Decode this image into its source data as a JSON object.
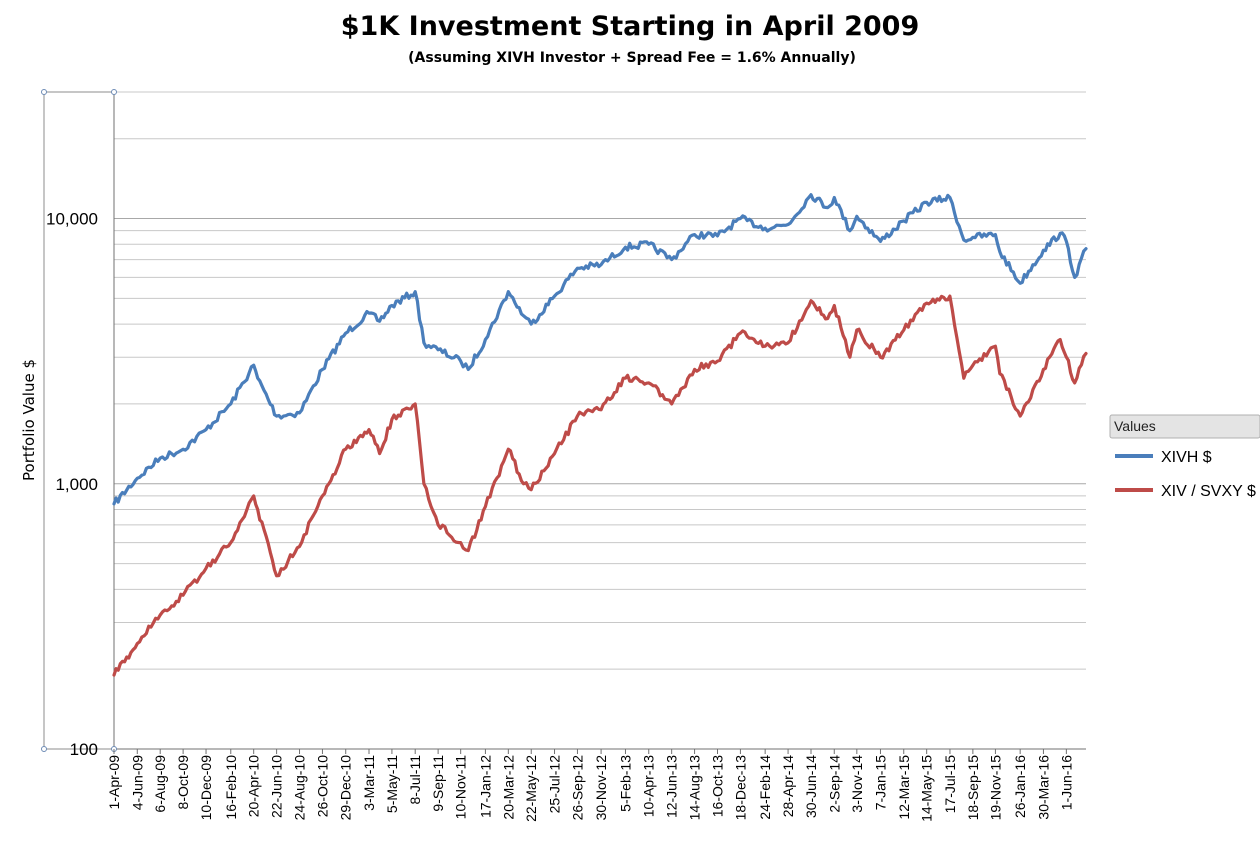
{
  "chart_data": {
    "type": "line",
    "title": "$1K Investment Starting in April 2009",
    "subtitle": "(Assuming XIVH Investor + Spread Fee = 1.6% Annually)",
    "ylabel": "Portfolio Value $",
    "xlabel": "",
    "y_scale": "log",
    "ylim": [
      100,
      30000
    ],
    "y_ticks": [
      "100",
      "1,000",
      "10,000"
    ],
    "grid": "horizontal",
    "legend_title": "Values",
    "legend_position": "right",
    "x_tick_labels": [
      "1-Apr-09",
      "4-Jun-09",
      "6-Aug-09",
      "8-Oct-09",
      "10-Dec-09",
      "16-Feb-10",
      "20-Apr-10",
      "22-Jun-10",
      "24-Aug-10",
      "26-Oct-10",
      "29-Dec-10",
      "3-Mar-11",
      "5-May-11",
      "8-Jul-11",
      "9-Sep-11",
      "10-Nov-11",
      "17-Jan-12",
      "20-Mar-12",
      "22-May-12",
      "25-Jul-12",
      "26-Sep-12",
      "30-Nov-12",
      "5-Feb-13",
      "10-Apr-13",
      "12-Jun-13",
      "14-Aug-13",
      "16-Oct-13",
      "18-Dec-13",
      "24-Feb-14",
      "28-Apr-14",
      "30-Jun-14",
      "2-Sep-14",
      "3-Nov-14",
      "7-Jan-15",
      "12-Mar-15",
      "14-May-15",
      "17-Jul-15",
      "18-Sep-15",
      "19-Nov-15",
      "26-Jan-16",
      "30-Mar-16",
      "1-Jun-16"
    ],
    "x_end": "Jul-16",
    "series": [
      {
        "name": "XIVH $",
        "color": "#4a7ebb",
        "points": [
          [
            "1-Apr-09",
            840
          ],
          [
            "4-Jun-09",
            1050
          ],
          [
            "6-Aug-09",
            1250
          ],
          [
            "8-Oct-09",
            1350
          ],
          [
            "10-Dec-09",
            1600
          ],
          [
            "16-Feb-10",
            2000
          ],
          [
            "20-Apr-10",
            2800
          ],
          [
            "1-May-10",
            2500
          ],
          [
            "22-Jun-10",
            1800
          ],
          [
            "24-Aug-10",
            1850
          ],
          [
            "26-Oct-10",
            2700
          ],
          [
            "29-Dec-10",
            3700
          ],
          [
            "3-Mar-11",
            4400
          ],
          [
            "1-Apr-11",
            4100
          ],
          [
            "5-May-11",
            4700
          ],
          [
            "8-Jul-11",
            5300
          ],
          [
            "1-Aug-11",
            3400
          ],
          [
            "9-Sep-11",
            3200
          ],
          [
            "10-Nov-11",
            2900
          ],
          [
            "1-Dec-11",
            2700
          ],
          [
            "17-Jan-12",
            3500
          ],
          [
            "20-Mar-12",
            5300
          ],
          [
            "1-May-12",
            4300
          ],
          [
            "22-May-12",
            4000
          ],
          [
            "25-Jul-12",
            5100
          ],
          [
            "26-Sep-12",
            6500
          ],
          [
            "30-Nov-12",
            6700
          ],
          [
            "5-Feb-13",
            7800
          ],
          [
            "10-Apr-13",
            8000
          ],
          [
            "12-Jun-13",
            7000
          ],
          [
            "14-Aug-13",
            8700
          ],
          [
            "16-Oct-13",
            8600
          ],
          [
            "18-Dec-13",
            10000
          ],
          [
            "24-Feb-14",
            9200
          ],
          [
            "28-Apr-14",
            9500
          ],
          [
            "30-Jun-14",
            12300
          ],
          [
            "15-Aug-14",
            11000
          ],
          [
            "2-Sep-14",
            12000
          ],
          [
            "15-Oct-14",
            9000
          ],
          [
            "3-Nov-14",
            10200
          ],
          [
            "7-Jan-15",
            8200
          ],
          [
            "12-Mar-15",
            9800
          ],
          [
            "14-May-15",
            11500
          ],
          [
            "17-Jul-15",
            12000
          ],
          [
            "24-Aug-15",
            8300
          ],
          [
            "18-Sep-15",
            8500
          ],
          [
            "19-Nov-15",
            8700
          ],
          [
            "1-Dec-15",
            7500
          ],
          [
            "26-Jan-16",
            5700
          ],
          [
            "30-Mar-16",
            7600
          ],
          [
            "15-May-16",
            8800
          ],
          [
            "1-Jun-16",
            8200
          ],
          [
            "24-Jun-16",
            6000
          ],
          [
            "Jul-16",
            7700
          ]
        ]
      },
      {
        "name": "XIV / SVXY $",
        "color": "#be4b48",
        "points": [
          [
            "1-Apr-09",
            190
          ],
          [
            "4-Jun-09",
            250
          ],
          [
            "6-Aug-09",
            320
          ],
          [
            "8-Oct-09",
            380
          ],
          [
            "10-Dec-09",
            480
          ],
          [
            "16-Feb-10",
            600
          ],
          [
            "20-Apr-10",
            900
          ],
          [
            "1-May-10",
            800
          ],
          [
            "22-Jun-10",
            450
          ],
          [
            "24-Aug-10",
            580
          ],
          [
            "26-Oct-10",
            900
          ],
          [
            "29-Dec-10",
            1350
          ],
          [
            "3-Mar-11",
            1600
          ],
          [
            "1-Apr-11",
            1300
          ],
          [
            "5-May-11",
            1750
          ],
          [
            "8-Jul-11",
            2000
          ],
          [
            "1-Aug-11",
            1000
          ],
          [
            "9-Sep-11",
            700
          ],
          [
            "10-Nov-11",
            600
          ],
          [
            "1-Dec-11",
            560
          ],
          [
            "17-Jan-12",
            820
          ],
          [
            "20-Mar-12",
            1350
          ],
          [
            "1-May-12",
            1000
          ],
          [
            "22-May-12",
            950
          ],
          [
            "25-Jul-12",
            1300
          ],
          [
            "26-Sep-12",
            1800
          ],
          [
            "30-Nov-12",
            1900
          ],
          [
            "5-Feb-13",
            2500
          ],
          [
            "10-Apr-13",
            2400
          ],
          [
            "12-Jun-13",
            2000
          ],
          [
            "14-Aug-13",
            2700
          ],
          [
            "16-Oct-13",
            2900
          ],
          [
            "18-Dec-13",
            3700
          ],
          [
            "24-Feb-14",
            3300
          ],
          [
            "28-Apr-14",
            3400
          ],
          [
            "30-Jun-14",
            4900
          ],
          [
            "15-Aug-14",
            4200
          ],
          [
            "2-Sep-14",
            4700
          ],
          [
            "15-Oct-14",
            3000
          ],
          [
            "3-Nov-14",
            3800
          ],
          [
            "7-Jan-15",
            3000
          ],
          [
            "12-Mar-15",
            3800
          ],
          [
            "14-May-15",
            4800
          ],
          [
            "17-Jul-15",
            5100
          ],
          [
            "24-Aug-15",
            2500
          ],
          [
            "18-Sep-15",
            2800
          ],
          [
            "19-Nov-15",
            3300
          ],
          [
            "1-Dec-15",
            2600
          ],
          [
            "26-Jan-16",
            1800
          ],
          [
            "30-Mar-16",
            2700
          ],
          [
            "15-May-16",
            3500
          ],
          [
            "1-Jun-16",
            3000
          ],
          [
            "24-Jun-16",
            2400
          ],
          [
            "Jul-16",
            3100
          ]
        ]
      }
    ]
  }
}
